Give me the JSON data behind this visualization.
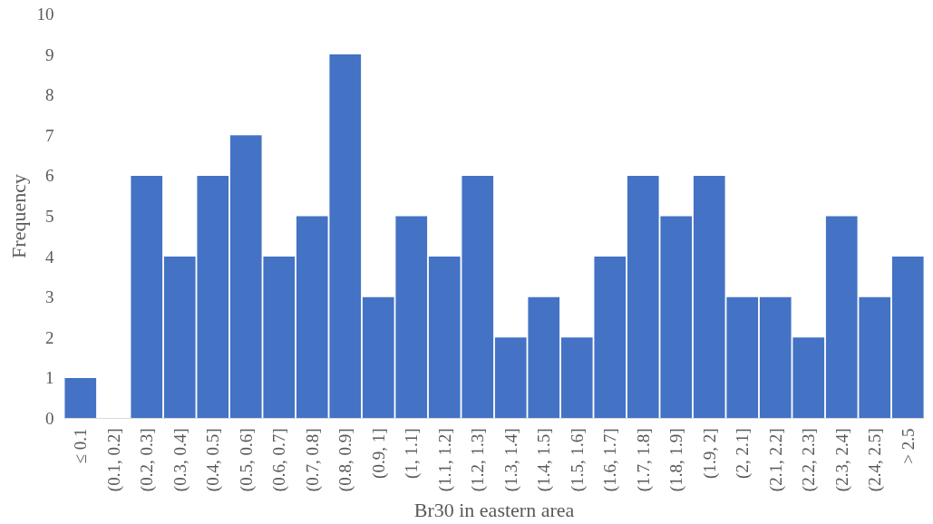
{
  "chart_data": {
    "type": "bar",
    "xlabel": "Br30 in eastern area",
    "ylabel": "Frequency",
    "categories": [
      "≤ 0.1",
      "(0.1, 0.2]",
      "(0.2, 0.3]",
      "(0.3, 0.4]",
      "(0.4, 0.5]",
      "(0.5, 0.6]",
      "(0.6, 0.7]",
      "(0.7, 0.8]",
      "(0.8, 0.9]",
      "(0.9, 1]",
      "(1, 1.1]",
      "(1.1, 1.2]",
      "(1.2, 1.3]",
      "(1.3, 1.4]",
      "(1.4, 1.5]",
      "(1.5, 1.6]",
      "(1.6, 1.7]",
      "(1.7, 1.8]",
      "(1.8, 1.9]",
      "(1.9, 2]",
      "(2, 2.1]",
      "(2.1, 2.2]",
      "(2.2, 2.3]",
      "(2.3, 2.4]",
      "(2.4, 2.5]",
      "> 2.5"
    ],
    "values": [
      1,
      0,
      6,
      4,
      6,
      7,
      4,
      5,
      9,
      3,
      5,
      4,
      6,
      2,
      3,
      2,
      4,
      6,
      5,
      6,
      3,
      3,
      2,
      5,
      3,
      4
    ],
    "color": "#4472c4",
    "ylim": [
      0,
      10
    ],
    "yticks": [
      0,
      1,
      2,
      3,
      4,
      5,
      6,
      7,
      8,
      9,
      10
    ],
    "grid": false
  }
}
